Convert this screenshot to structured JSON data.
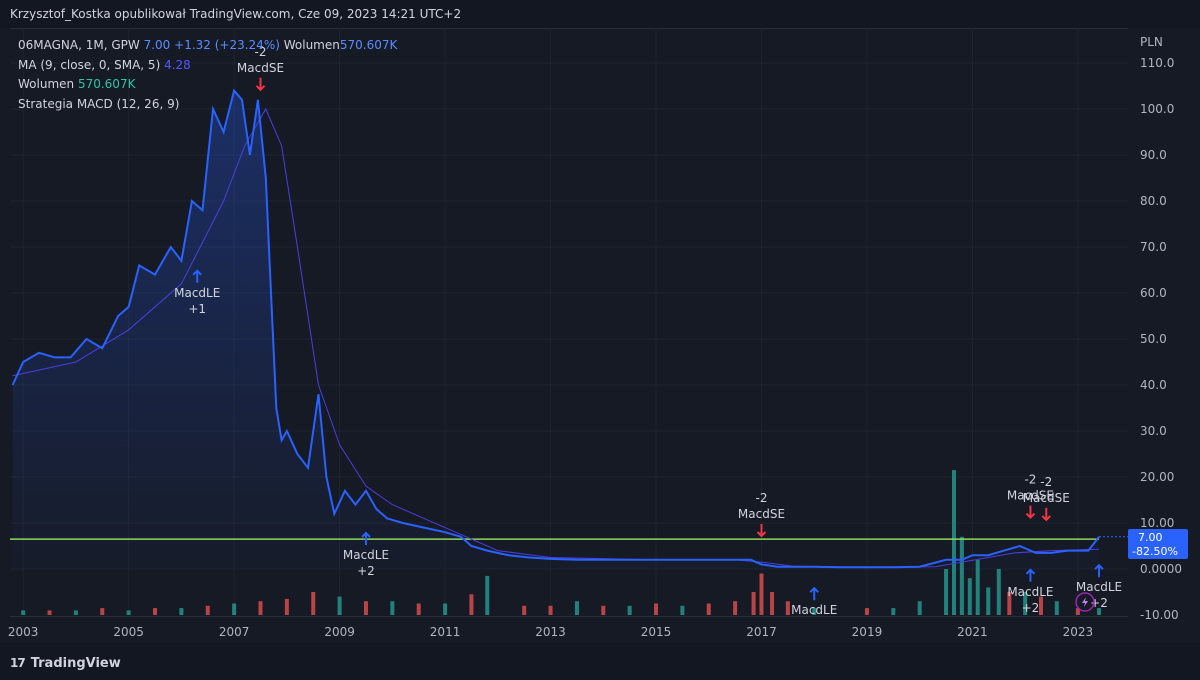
{
  "header": {
    "attribution": "Krzysztof_Kostka opublikował TradingView.com, Cze 09, 2023 14:21 UTC+2"
  },
  "legend": {
    "symbol_line": "06MAGNA, 1M, GPW",
    "last_price": "7.00",
    "change": "+1.32 (+23.24%)",
    "volume_label": "Wolumen",
    "volume_value": "570.607K",
    "ma_label": "MA (9, close, 0, SMA, 5)",
    "ma_value": "4.28",
    "volume_row_label": "Wolumen",
    "volume_row_value": "570.607K",
    "strategy_label": "Strategia MACD (12, 26, 9)"
  },
  "price_axis": {
    "currency": "PLN",
    "ticks": [
      "110.0",
      "100.0",
      "90.0",
      "80.0",
      "70.0",
      "60.0",
      "50.0",
      "40.0",
      "30.0",
      "20.00",
      "10.00",
      "0.0000",
      "-10.00"
    ],
    "last_price_badge": "7.00",
    "change_badge": "-82.50%"
  },
  "time_axis": {
    "ticks": [
      "2003",
      "2005",
      "2007",
      "2009",
      "2011",
      "2013",
      "2015",
      "2017",
      "2019",
      "2021",
      "2023"
    ]
  },
  "footer": {
    "brand": "TradingView",
    "brand_mark": "17"
  },
  "colors": {
    "background": "#161a25",
    "price_line": "#2962ff",
    "ma_line": "#4a3ee0",
    "horizontal_line": "#8bd85a",
    "volume_up": "#26a69a",
    "volume_down": "#ef5350",
    "signal_long": "#2962ff",
    "signal_short": "#f23645"
  },
  "chart_data": {
    "type": "line",
    "y_unit": "PLN",
    "ylim": [
      -10,
      113
    ],
    "xlim": [
      2002.75,
      2023.95
    ],
    "horizontal_line_value": 6.5,
    "price": {
      "x": [
        2002.8,
        2003.0,
        2003.3,
        2003.6,
        2003.9,
        2004.2,
        2004.5,
        2004.8,
        2005.0,
        2005.2,
        2005.5,
        2005.8,
        2006.0,
        2006.2,
        2006.4,
        2006.6,
        2006.8,
        2007.0,
        2007.15,
        2007.3,
        2007.45,
        2007.6,
        2007.7,
        2007.8,
        2007.9,
        2008.0,
        2008.2,
        2008.4,
        2008.6,
        2008.75,
        2008.9,
        2009.1,
        2009.3,
        2009.5,
        2009.7,
        2009.9,
        2010.2,
        2010.6,
        2011.0,
        2011.3,
        2011.5,
        2011.8,
        2012.2,
        2012.6,
        2013.0,
        2013.5,
        2014.0,
        2014.5,
        2015.0,
        2015.5,
        2016.0,
        2016.5,
        2016.8,
        2017.0,
        2017.3,
        2017.7,
        2018.0,
        2018.5,
        2019.0,
        2019.5,
        2020.0,
        2020.5,
        2020.8,
        2021.0,
        2021.3,
        2021.6,
        2021.9,
        2022.2,
        2022.5,
        2022.8,
        2023.0,
        2023.2,
        2023.4
      ],
      "values": [
        40,
        45,
        47,
        46,
        46,
        50,
        48,
        55,
        57,
        66,
        64,
        70,
        67,
        80,
        78,
        100,
        95,
        104,
        102,
        90,
        102,
        85,
        60,
        35,
        28,
        30,
        25,
        22,
        38,
        20,
        12,
        17,
        14,
        17,
        13,
        11,
        10,
        9,
        8,
        7,
        5,
        4,
        3,
        2.5,
        2.2,
        2.0,
        2.0,
        2.0,
        2.0,
        2.0,
        2.0,
        2.0,
        2.0,
        1.0,
        0.5,
        0.5,
        0.5,
        0.4,
        0.4,
        0.4,
        0.5,
        2,
        2,
        3,
        3,
        4,
        5,
        3.5,
        3.5,
        4,
        4,
        4,
        7
      ]
    },
    "ma": {
      "x": [
        2002.8,
        2004.0,
        2005.0,
        2006.0,
        2006.8,
        2007.2,
        2007.6,
        2007.9,
        2008.2,
        2008.6,
        2009.0,
        2009.5,
        2010.0,
        2010.6,
        2011.2,
        2012.0,
        2013.0,
        2015.0,
        2016.5,
        2017.0,
        2017.6,
        2019.0,
        2020.3,
        2020.8,
        2021.3,
        2021.8,
        2022.5,
        2023.4
      ],
      "values": [
        42,
        45,
        52,
        62,
        80,
        92,
        100,
        92,
        70,
        40,
        27,
        18,
        14,
        11,
        8,
        4,
        2.5,
        2,
        2,
        1.5,
        0.6,
        0.4,
        0.5,
        1.5,
        2.5,
        3.5,
        4,
        4.28
      ]
    },
    "volume": {
      "x": [
        2003.0,
        2003.5,
        2004.0,
        2004.5,
        2005.0,
        2005.5,
        2006.0,
        2006.5,
        2007.0,
        2007.5,
        2008.0,
        2008.5,
        2009.0,
        2009.5,
        2010.0,
        2010.5,
        2011.0,
        2011.5,
        2011.8,
        2012.5,
        2013.0,
        2013.5,
        2014.0,
        2014.5,
        2015.0,
        2015.5,
        2016.0,
        2016.5,
        2016.85,
        2017.0,
        2017.2,
        2017.5,
        2018.0,
        2019.0,
        2019.5,
        2020.0,
        2020.5,
        2020.65,
        2020.8,
        2020.95,
        2021.1,
        2021.3,
        2021.5,
        2021.7,
        2022.0,
        2022.3,
        2022.6,
        2023.0,
        2023.4
      ],
      "values": [
        1,
        1,
        1,
        1.5,
        1,
        1.5,
        1.5,
        2,
        2.5,
        3,
        3.5,
        5,
        4,
        3,
        3,
        2.5,
        2.5,
        4.5,
        8.5,
        2,
        2,
        3,
        2,
        2,
        2.5,
        2,
        2.5,
        3,
        5,
        9,
        5,
        3,
        1.5,
        1.5,
        1.5,
        3,
        10,
        31.5,
        17,
        8,
        12,
        6,
        10,
        5,
        5,
        4,
        3,
        1.5,
        1.5
      ],
      "up": [
        true,
        false,
        true,
        false,
        true,
        false,
        true,
        false,
        true,
        false,
        false,
        false,
        true,
        false,
        true,
        false,
        true,
        false,
        true,
        false,
        false,
        true,
        false,
        true,
        false,
        true,
        false,
        false,
        false,
        false,
        false,
        false,
        true,
        false,
        true,
        true,
        true,
        true,
        true,
        true,
        true,
        true,
        true,
        false,
        true,
        false,
        true,
        false,
        true
      ]
    },
    "signals": [
      {
        "kind": "long",
        "x": 2006.3,
        "y": 67,
        "label": "MacdLE",
        "qty": "+1"
      },
      {
        "kind": "short",
        "x": 2007.5,
        "y": 102,
        "label": "MacdSE",
        "qty": "-2"
      },
      {
        "kind": "long",
        "x": 2009.5,
        "y": 10,
        "label": "MacdLE",
        "qty": "+2"
      },
      {
        "kind": "short",
        "x": 2017.0,
        "y": 5,
        "label": "MacdSE",
        "qty": "-2"
      },
      {
        "kind": "long",
        "x": 2018.0,
        "y": -2,
        "label": "MacdLE",
        "qty": ""
      },
      {
        "kind": "short",
        "x": 2022.1,
        "y": 9,
        "label": "MacdSE",
        "qty": "-2"
      },
      {
        "kind": "short",
        "x": 2022.4,
        "y": 8.5,
        "label": "MacdSE",
        "qty": "-2"
      },
      {
        "kind": "long",
        "x": 2022.1,
        "y": 2,
        "label": "MacdLE",
        "qty": "+2"
      },
      {
        "kind": "long",
        "x": 2023.4,
        "y": 3,
        "label": "MacdLE",
        "qty": "+2"
      }
    ]
  }
}
